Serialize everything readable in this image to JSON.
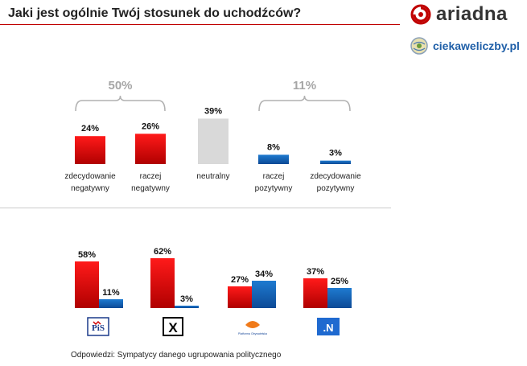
{
  "header": {
    "title": "Jaki jest ogólnie Twój stosunek do uchodźców?",
    "brand1": "ariadna",
    "brand2": "ciekaweliczby.pl"
  },
  "colors": {
    "red": "#e01010",
    "blue": "#1565c0",
    "gray": "#d9d9d9",
    "accent": "#c00000",
    "bracket": "#b0b0b0"
  },
  "chart_data": [
    {
      "type": "bar",
      "title": "Jaki jest ogólnie Twój stosunek do uchodźców?",
      "categories": [
        [
          "zdecydowanie",
          "negatywny"
        ],
        [
          "raczej",
          "negatywny"
        ],
        [
          "neutralny"
        ],
        [
          "raczej",
          "pozytywny"
        ],
        [
          "zdecydowanie",
          "pozytywny"
        ]
      ],
      "values": [
        24,
        26,
        39,
        8,
        3
      ],
      "value_labels": [
        "24%",
        "26%",
        "39%",
        "8%",
        "3%"
      ],
      "colors": [
        "red",
        "red",
        "gray",
        "blue",
        "blue"
      ],
      "group_totals": [
        {
          "label": "50%",
          "from": 0,
          "to": 1
        },
        {
          "label": "11%",
          "from": 3,
          "to": 4
        }
      ]
    },
    {
      "type": "bar",
      "title": "Odpowiedzi: Sympatycy danego ugrupowania politycznego",
      "groups": [
        "PiS",
        "Kukiz'15",
        "Platforma Obywatelska",
        ".N"
      ],
      "series": [
        {
          "name": "negatywny",
          "values": [
            58,
            62,
            27,
            37
          ],
          "labels": [
            "58%",
            "62%",
            "27%",
            "37%"
          ]
        },
        {
          "name": "pozytywny",
          "values": [
            11,
            3,
            34,
            25
          ],
          "labels": [
            "11%",
            "3%",
            "34%",
            "25%"
          ]
        }
      ],
      "party_logos": [
        "PiS",
        "X",
        "Platforma Obywatelska",
        ".N"
      ]
    }
  ],
  "footer": {
    "text": "Odpowiedzi: Sympatycy danego ugrupowania politycznego"
  }
}
